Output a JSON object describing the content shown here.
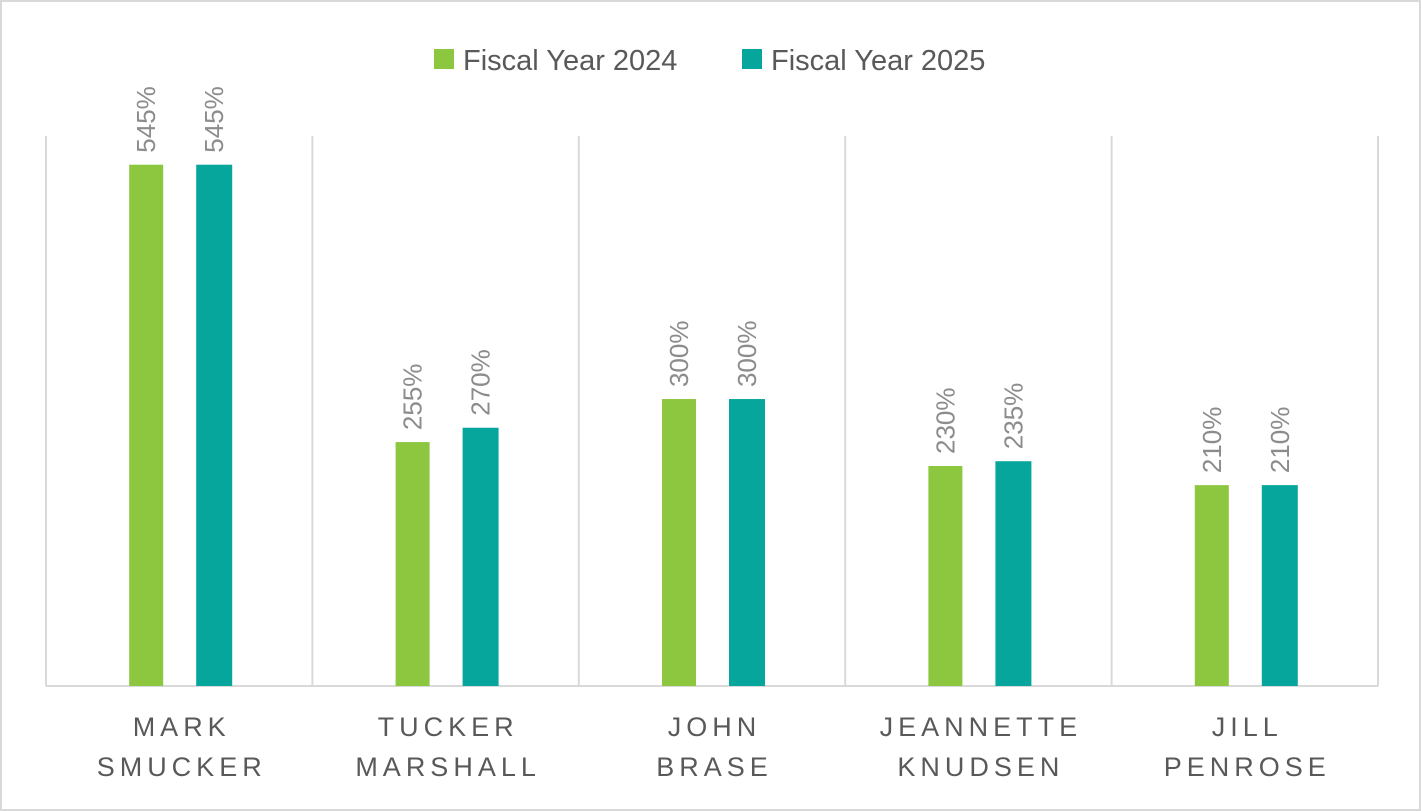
{
  "chart_data": {
    "type": "bar",
    "title": "",
    "xlabel": "",
    "ylabel": "",
    "categories": [
      [
        "MARK",
        "SMUCKER"
      ],
      [
        "TUCKER",
        "MARSHALL"
      ],
      [
        "JOHN",
        "BRASE"
      ],
      [
        "JEANNETTE",
        "KNUDSEN"
      ],
      [
        "JILL",
        "PENROSE"
      ]
    ],
    "series": [
      {
        "name": "Fiscal Year 2024",
        "color": "#8dc63f",
        "values": [
          545,
          255,
          300,
          230,
          210
        ],
        "labels": [
          "545%",
          "255%",
          "300%",
          "230%",
          "210%"
        ]
      },
      {
        "name": "Fiscal Year 2025",
        "color": "#07a69c",
        "values": [
          545,
          270,
          300,
          235,
          210
        ],
        "labels": [
          "545%",
          "270%",
          "300%",
          "235%",
          "210%"
        ]
      }
    ],
    "ylim": [
      0,
      575
    ],
    "value_unit": "%",
    "grid": "vertical category separators",
    "legend": "top-center",
    "axis_color": "#d9d9d9",
    "text_color": "#595959",
    "label_color": "#8c8c8c"
  }
}
